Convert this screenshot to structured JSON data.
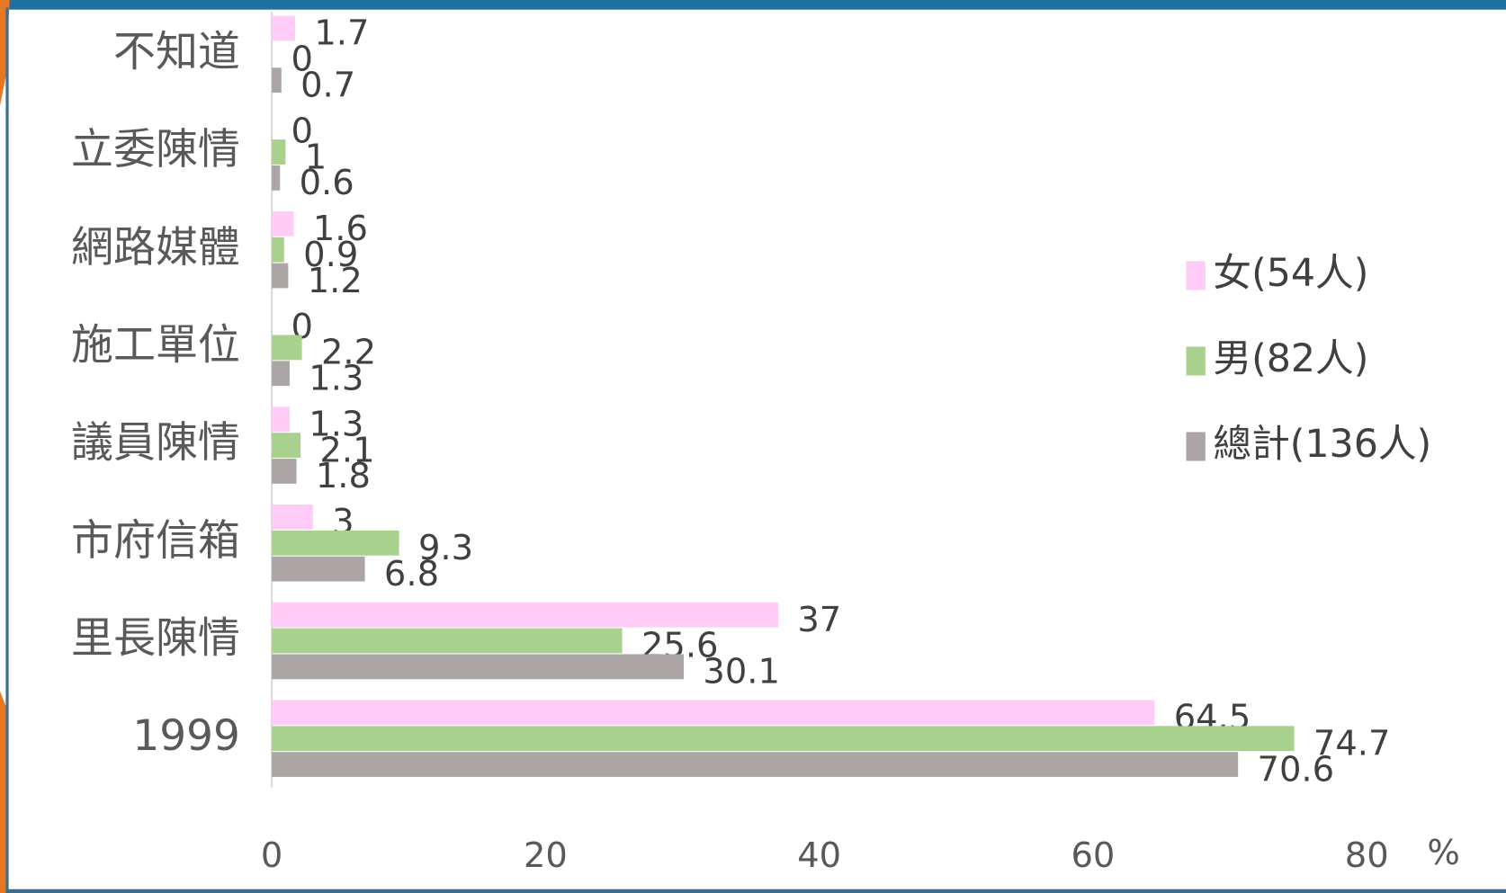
{
  "chart_data": {
    "type": "bar",
    "orientation": "horizontal",
    "categories": [
      "不知道",
      "立委陳情",
      "網路媒體",
      "施工單位",
      "議員陳情",
      "市府信箱",
      "里長陳情",
      "1999"
    ],
    "series": [
      {
        "name": "女(54人)",
        "color": "#ffccf7",
        "values": [
          1.7,
          0,
          1.6,
          0,
          1.3,
          3,
          37,
          64.5
        ]
      },
      {
        "name": "男(82人)",
        "color": "#a9d18e",
        "values": [
          0,
          1,
          0.9,
          2.2,
          2.1,
          9.3,
          25.6,
          74.7
        ]
      },
      {
        "name": "總計(136人)",
        "color": "#aba5a6",
        "values": [
          0.7,
          0.6,
          1.2,
          1.3,
          1.8,
          6.8,
          30.1,
          70.6
        ]
      }
    ],
    "x_label": "%",
    "xlim": [
      0,
      80
    ],
    "xticks": [
      0,
      20,
      40,
      60,
      80
    ],
    "legend": "right"
  }
}
